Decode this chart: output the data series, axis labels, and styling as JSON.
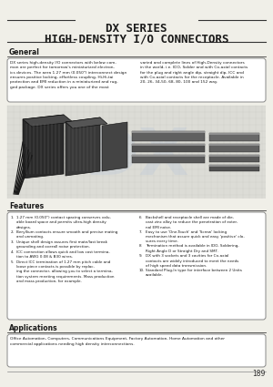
{
  "title_line1": "DX SERIES",
  "title_line2": "HIGH-DENSITY I/O CONNECTORS",
  "section_general": "General",
  "gen_left": "DX series high-density I/O connectors with below com-\nmon are perfect for tomorrow's miniaturized electron-\nics devices. The aera 1.27 mm (0.050\") interconnect design\nensures positive locking, effortless coupling, Hi-Hi-tai\nprotection and EMI reduction in a miniaturized and rug-\nged package. DX series offers you one of the most",
  "gen_right": "varied and complete lines of High-Density connectors\nin the world, i.e. IDO, Solder and with Co-axial contacts\nfor the plug and right angle dip, straight dip, ICC and\nwith Co-axial contacts for the receptacle. Available in\n20, 26, 34,50, 68, 80, 100 and 152 way.",
  "section_features": "Features",
  "features_left": [
    [
      "1.",
      "1.27 mm (0.050\") contact spacing conserves valu-\nable board space and permits ultra-high density\ndesigns."
    ],
    [
      "2.",
      "Beryllium contacts ensure smooth and precise mating\nand unmating."
    ],
    [
      "3.",
      "Unique shell design assures first mate/last break\ngrounding and overall noise protection."
    ],
    [
      "4.",
      "ICC connection allows quick and low cost termina-\ntion to AWG 0.08 & B30 wires."
    ],
    [
      "5.",
      "Direct ICC termination of 1.27 mm pitch cable and\nloose piece contacts is possible by replac-\ning the connector, allowing you to select a termina-\ntion system meeting requirements. Mass production\nand mass production, for example."
    ]
  ],
  "features_right": [
    [
      "6.",
      "Backshell and receptacle shell are made of die-\ncast zinc alloy to reduce the penetration of exter-\nnal EMI noise."
    ],
    [
      "7.",
      "Easy to use 'One-Touch' and 'Screw' locking\nmechanism that assure quick and easy 'positive' clo-\nsures every time."
    ],
    [
      "8.",
      "Termination method is available in IDO, Soldering,\nRight Angle D or Straight Dry and SMT."
    ],
    [
      "9.",
      "DX with 3 sockets and 3 cavities for Co-axial\ncontacts are widely introduced to meet the needs\nof high speed data transmission."
    ],
    [
      "10.",
      "Standard Plug-In type for interface between 2 Units\navailable."
    ]
  ],
  "section_applications": "Applications",
  "applications_text": "Office Automation, Computers, Communications Equipment, Factory Automation, Home Automation and other\ncommercial applications needing high density interconnections.",
  "page_number": "189",
  "bg_color": "#f0efe8",
  "white": "#ffffff",
  "dark": "#1a1a1a",
  "mid": "#555555",
  "light_gray": "#cccccc"
}
